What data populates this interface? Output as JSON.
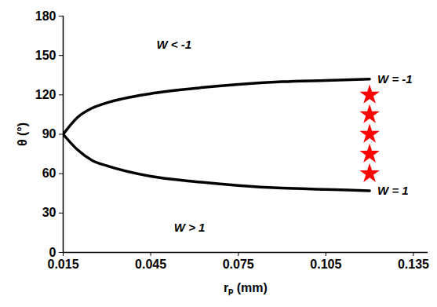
{
  "chart_data": {
    "type": "line",
    "x_label": "rₚ (mm)",
    "y_label": "θ (°)",
    "xlim": [
      0.015,
      0.14
    ],
    "ylim": [
      0,
      180
    ],
    "xticks": [
      0.015,
      0.045,
      0.075,
      0.105,
      0.135
    ],
    "yticks": [
      0,
      30,
      60,
      90,
      120,
      150,
      180
    ],
    "grid": false,
    "x": [
      0.015,
      0.02,
      0.025,
      0.03,
      0.045,
      0.06,
      0.075,
      0.09,
      0.105,
      0.12
    ],
    "series": [
      {
        "name": "W = -1",
        "color": "#000000",
        "values": [
          90,
          103,
          110,
          114,
          121,
          125,
          128,
          130,
          131,
          132
        ]
      },
      {
        "name": "W = 1",
        "color": "#000000",
        "values": [
          90,
          78,
          70,
          66,
          58,
          54,
          51,
          49,
          48,
          47
        ]
      }
    ],
    "points": {
      "type": "scatter",
      "marker": "star",
      "color": "#ff0000",
      "x": [
        0.12,
        0.12,
        0.12,
        0.12,
        0.12
      ],
      "y": [
        60,
        75,
        90,
        105,
        120
      ]
    },
    "annotations": [
      {
        "text": "W < -1",
        "x": 0.047,
        "y": 158
      },
      {
        "text": "W > 1",
        "x": 0.053,
        "y": 19
      }
    ]
  }
}
